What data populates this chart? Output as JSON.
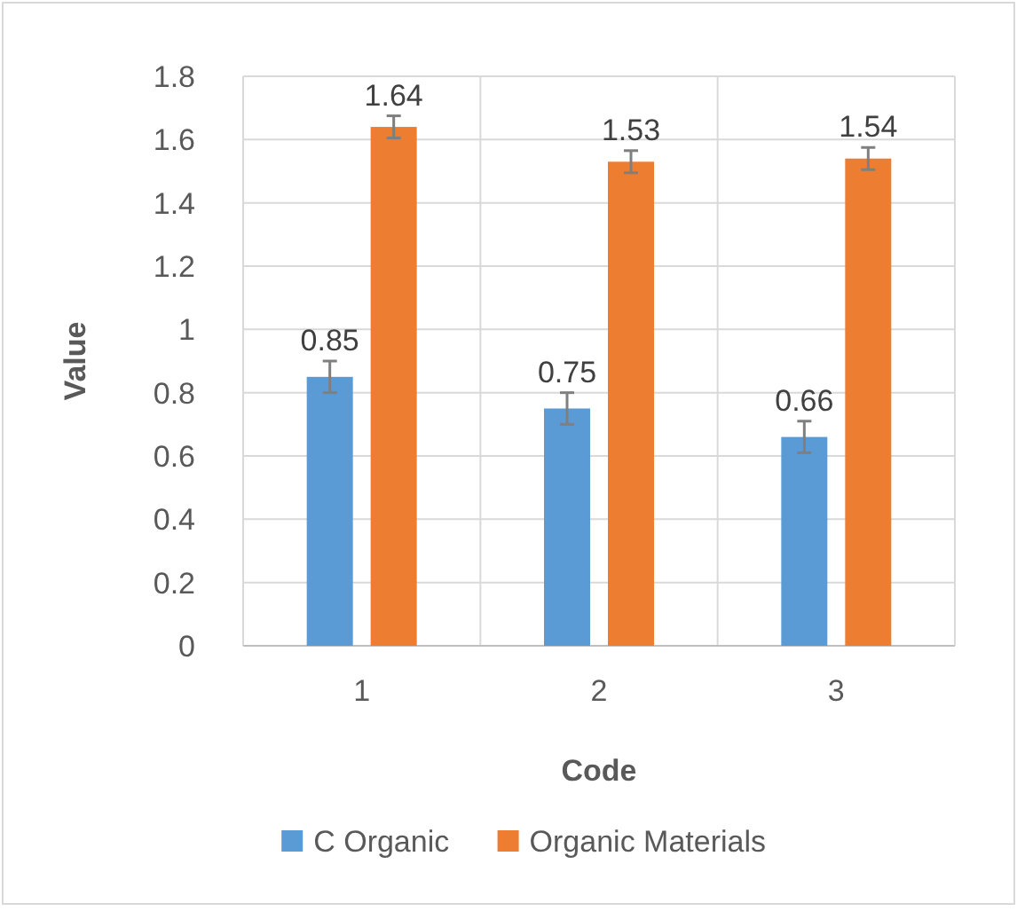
{
  "chart_data": {
    "type": "bar",
    "xlabel": "Code",
    "ylabel": "Value",
    "categories": [
      "1",
      "2",
      "3"
    ],
    "series": [
      {
        "name": "C Organic",
        "color": "#5b9bd5",
        "values": [
          0.85,
          0.75,
          0.66
        ],
        "errors": [
          0.05,
          0.05,
          0.05
        ]
      },
      {
        "name": "Organic Materials",
        "color": "#ed7d31",
        "values": [
          1.64,
          1.53,
          1.54
        ],
        "errors": [
          0.035,
          0.035,
          0.035
        ]
      }
    ],
    "ylim": [
      0,
      1.8
    ],
    "yticks": [
      0,
      {
        "value": 0.2,
        "label": "0.2"
      },
      {
        "value": 0.4,
        "label": "0.4"
      },
      {
        "value": 0.6,
        "label": "0.6"
      },
      {
        "value": 0.8,
        "label": "0.8"
      },
      1,
      {
        "value": 1.2,
        "label": "1.2"
      },
      {
        "value": 1.4,
        "label": "1.4"
      },
      {
        "value": 1.6,
        "label": "1.6"
      },
      {
        "value": 1.8,
        "label": "1.8"
      }
    ],
    "grid": true,
    "data_labels": true,
    "legend": "bottom"
  }
}
